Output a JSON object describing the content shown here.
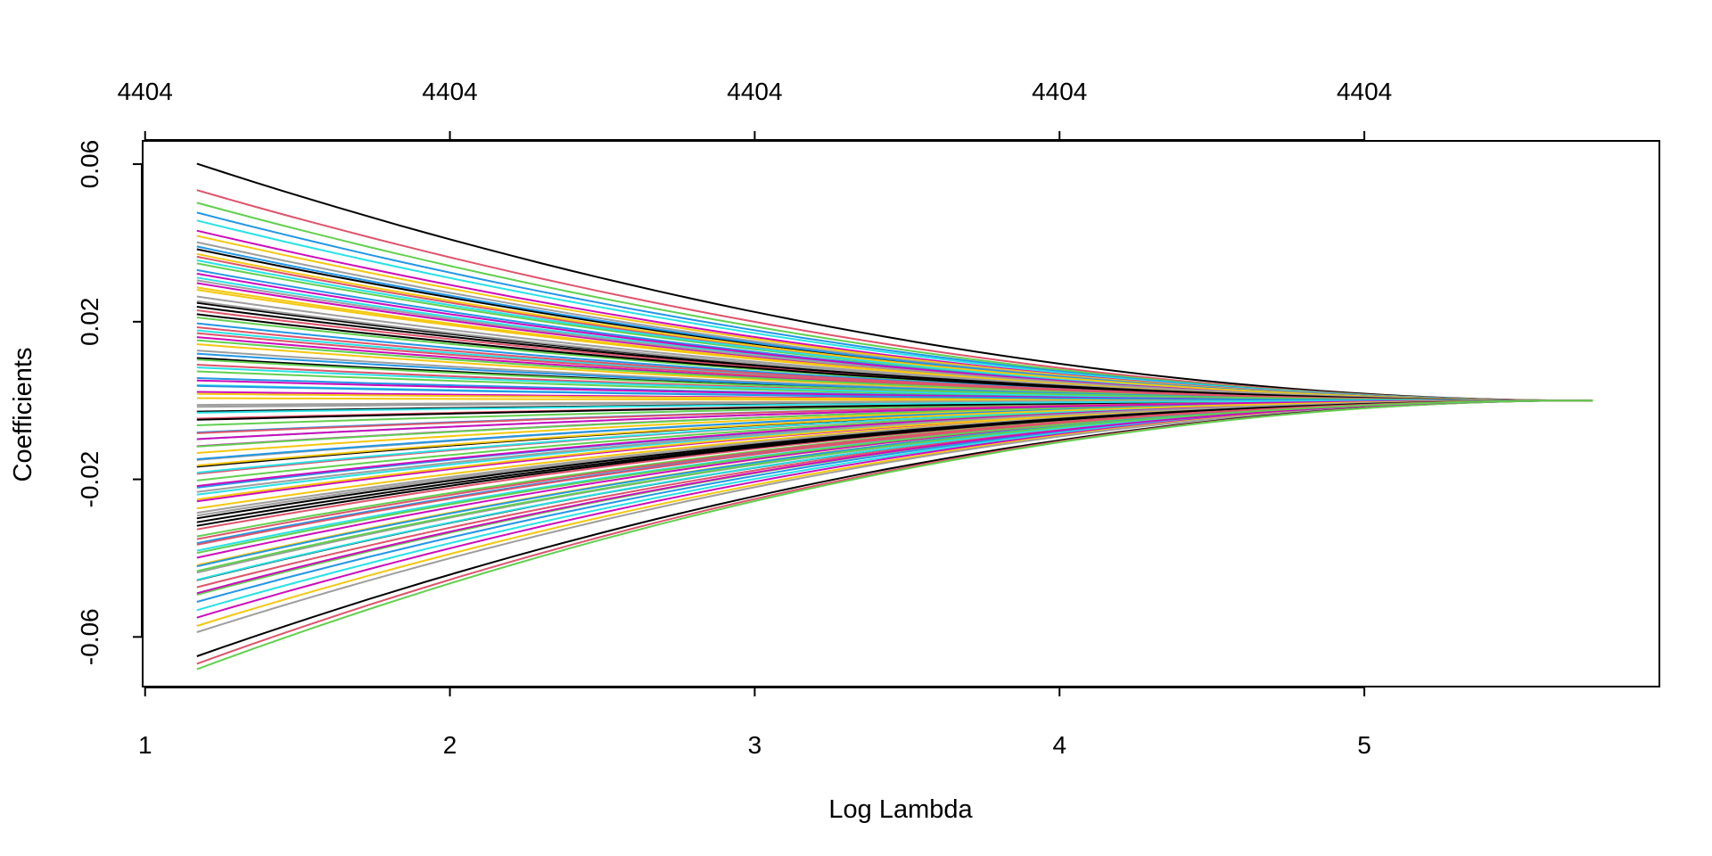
{
  "chart_data": {
    "type": "line",
    "title": "",
    "xlabel": "Log Lambda",
    "ylabel": "Coefficients",
    "xlim": [
      0.992,
      5.968
    ],
    "ylim": [
      -0.0726,
      0.0659
    ],
    "x_ticks": [
      1,
      2,
      3,
      4,
      5
    ],
    "x_tick_labels": [
      "1",
      "2",
      "3",
      "4",
      "5"
    ],
    "y_ticks": [
      -0.06,
      -0.02,
      0.02,
      0.06
    ],
    "y_tick_labels": [
      "-0.06",
      "-0.02",
      "0.02",
      "0.06"
    ],
    "top_axis_ticks": [
      1,
      2,
      3,
      4,
      5
    ],
    "top_axis_labels": [
      "4404",
      "4404",
      "4404",
      "4404",
      "4404"
    ],
    "x_range": [
      1.17,
      5.7
    ],
    "end_value": 0,
    "grid": false,
    "legend": "none",
    "series_count": 4404,
    "series_start_values": [
      0.0601,
      0.0534,
      0.0502,
      0.0477,
      0.0457,
      0.0431,
      0.0418,
      0.0402,
      0.0384,
      0.0365,
      0.0348,
      0.0331,
      0.0312,
      0.0298,
      0.0281,
      0.0264,
      0.0248,
      0.0229,
      0.0211,
      0.0196,
      0.0178,
      0.0161,
      0.0143,
      0.0127,
      0.0108,
      0.0091,
      0.0074,
      0.0057,
      0.0039,
      0.0022,
      0.0006,
      -0.0011,
      -0.0028,
      -0.0046,
      -0.0063,
      -0.0081,
      -0.0098,
      -0.0116,
      -0.0133,
      -0.0151,
      -0.0168,
      -0.0186,
      -0.0203,
      -0.0221,
      -0.0239,
      -0.0256,
      -0.0274,
      -0.0292,
      -0.0309,
      -0.0327,
      -0.0345,
      -0.0362,
      -0.0381,
      -0.0399,
      -0.0418,
      -0.0437,
      -0.0456,
      -0.0474,
      -0.0493,
      -0.0511,
      -0.0532,
      -0.0551,
      -0.0572,
      -0.0588,
      -0.0649,
      -0.0668,
      -0.0682,
      0.0391,
      0.0356,
      0.0322,
      0.0287,
      0.0252,
      0.0219,
      0.0186,
      0.0153,
      0.0119,
      0.0084,
      0.0051,
      0.0017,
      -0.0016,
      -0.0049,
      -0.0083,
      -0.0117,
      -0.0149,
      -0.0183,
      -0.0217,
      -0.0251,
      -0.0285,
      -0.0318,
      -0.0352,
      -0.0387,
      -0.0421,
      -0.0455,
      -0.0489,
      0.0372,
      0.0305,
      0.0238,
      0.0171,
      0.0104,
      0.0037,
      -0.0031,
      -0.0098,
      -0.0165,
      -0.0232,
      -0.0299,
      -0.0366,
      -0.0433
    ],
    "palette": [
      "#000000",
      "#DF536B",
      "#61D04F",
      "#2297E6",
      "#28E2E5",
      "#CD0BBC",
      "#F5C710",
      "#9E9E9E"
    ]
  }
}
